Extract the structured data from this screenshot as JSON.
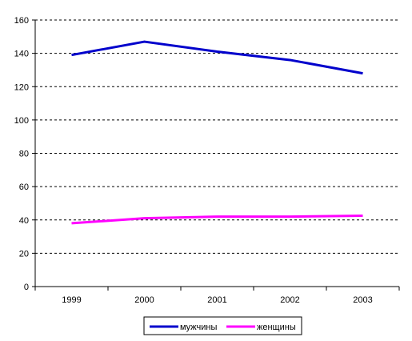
{
  "chart_data": {
    "type": "line",
    "title": "",
    "xlabel": "",
    "ylabel": "",
    "categories": [
      "1999",
      "2000",
      "2001",
      "2002",
      "2003"
    ],
    "ylim": [
      0,
      160
    ],
    "yticks": [
      0,
      20,
      40,
      60,
      80,
      100,
      120,
      140,
      160
    ],
    "grid": true,
    "legend_position": "bottom",
    "series": [
      {
        "name": "мужчины",
        "color": "#0000cc",
        "values": [
          139,
          147,
          141,
          136,
          128
        ]
      },
      {
        "name": "женщины",
        "color": "#ff00ff",
        "values": [
          38,
          41,
          42,
          42,
          42.5
        ]
      }
    ]
  }
}
